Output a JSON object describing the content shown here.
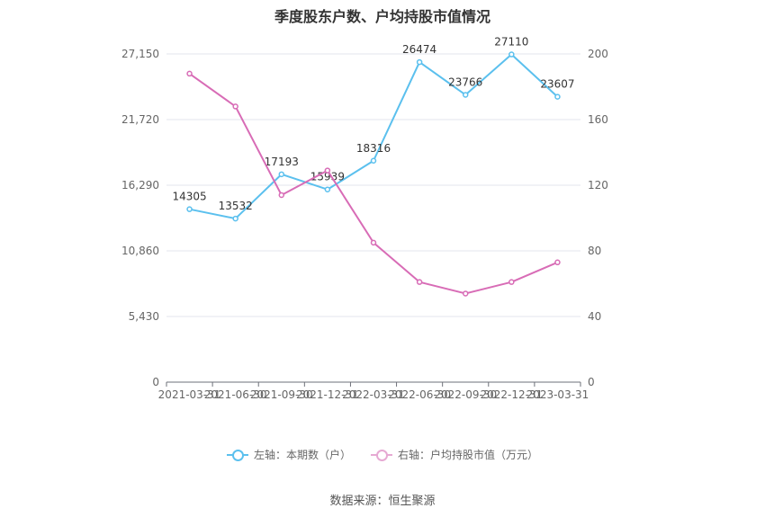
{
  "chart_data": {
    "type": "line",
    "title": "季度股东户数、户均持股市值情况",
    "categories": [
      "2021-03-31",
      "2021-06-30",
      "2021-09-30",
      "2021-12-31",
      "2022-03-31",
      "2022-06-30",
      "2022-09-30",
      "2022-12-31",
      "2023-03-31"
    ],
    "left_axis": {
      "min": 0,
      "max": 27150,
      "ticks": [
        "0",
        "5,430",
        "10,860",
        "16,290",
        "21,720",
        "27,150"
      ]
    },
    "right_axis": {
      "min": 0,
      "max": 200,
      "ticks": [
        "0",
        "40",
        "80",
        "120",
        "160",
        "200"
      ]
    },
    "series": [
      {
        "name": "左轴：本期数（户）",
        "axis": "left",
        "color": "#5bc0ee",
        "values": [
          14305,
          13532,
          17193,
          15939,
          18316,
          26474,
          23766,
          27110,
          23607
        ],
        "labels": [
          "14305",
          "13532",
          "17193",
          "15939",
          "18316",
          "26474",
          "23766",
          "27110",
          "23607"
        ]
      },
      {
        "name": "右轴：户均持股市值（万元）",
        "axis": "right",
        "color": "#d86cb6",
        "values": [
          188,
          168,
          114,
          129,
          85,
          61,
          54,
          61,
          73
        ]
      }
    ],
    "grid": true,
    "legend_position": "bottom"
  },
  "source": "数据来源：恒生聚源"
}
